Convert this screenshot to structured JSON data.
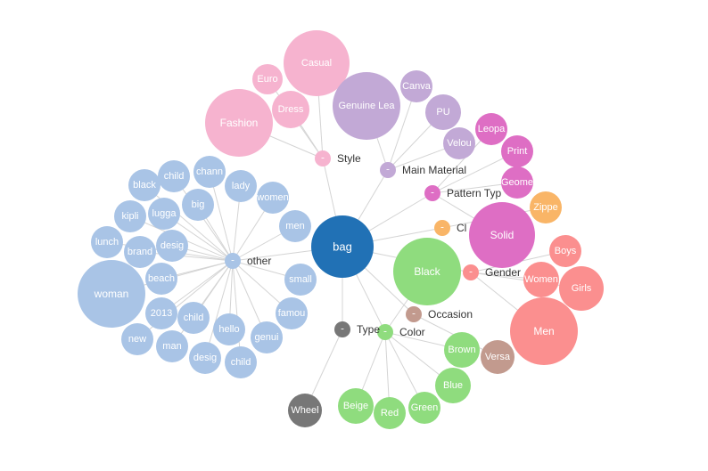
{
  "graph": {
    "root": {
      "label": "bag",
      "color": "#2171b5"
    },
    "collapse_marker": "-",
    "categories": [
      {
        "id": "other",
        "label": "other",
        "color": "#a9c4e6",
        "children": [
          "woman",
          "beach",
          "2013",
          "child",
          "new",
          "man",
          "design",
          "child _",
          "hello _",
          "genuin",
          "famous",
          "small",
          "men",
          "women",
          "lady",
          "channe",
          "child",
          "black",
          "luggag",
          "big",
          "kiplin",
          "desigu",
          "lunch",
          "brand"
        ]
      },
      {
        "id": "style",
        "label": "Style",
        "color": "#f6b3cf",
        "children": [
          "Casual",
          "Europ",
          "Dress",
          "Fashion"
        ]
      },
      {
        "id": "material",
        "label": "Main Material",
        "color": "#c2a9d6",
        "children": [
          "Genuine Leath",
          "Canvas",
          "PU",
          "Velour"
        ]
      },
      {
        "id": "pattern",
        "label": "Pattern Typ",
        "color": "#de6ec4",
        "children": [
          "Leopar",
          "Print",
          "Geomet",
          "Solid"
        ]
      },
      {
        "id": "closure",
        "label": "Cl",
        "color": "#f9b567",
        "children": [
          "Zipper"
        ]
      },
      {
        "id": "gender",
        "label": "Gender",
        "color": "#fb8f8f",
        "children": [
          "Boys",
          "Women",
          "Girls",
          "Men"
        ]
      },
      {
        "id": "occasion",
        "label": "Occasion",
        "color": "#c29a8e",
        "children": [
          "Versat"
        ]
      },
      {
        "id": "color",
        "label": "Color",
        "color": "#8fdc7e",
        "children": [
          "Black",
          "Brown",
          "Blue",
          "Green",
          "Red",
          "Beige"
        ]
      },
      {
        "id": "type",
        "label": "Type",
        "color": "#777777",
        "children": [
          "Wheele"
        ]
      }
    ]
  }
}
